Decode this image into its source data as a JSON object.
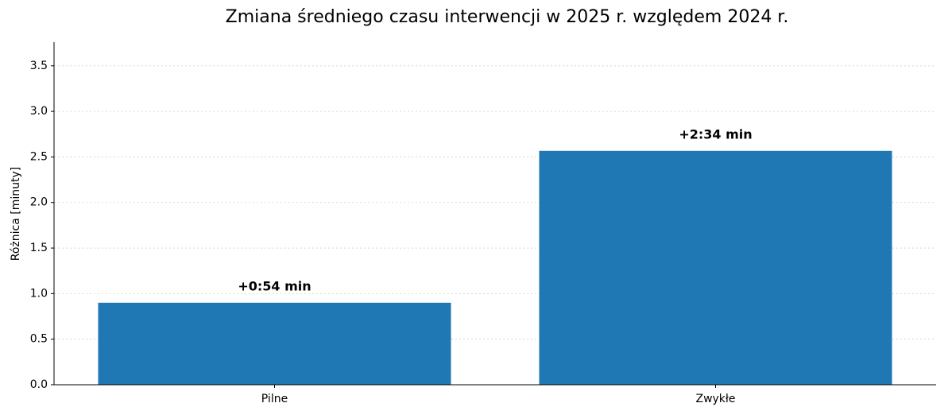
{
  "chart_data": {
    "type": "bar",
    "title": "Zmiana średniego czasu interwencji w 2025 r. względem 2024 r.",
    "y_label": "Różnica [minuty]",
    "categories": [
      "Pilne",
      "Zwykłe"
    ],
    "values": [
      0.9,
      2.5667
    ],
    "value_labels": [
      "+0:54 min",
      "+2:34 min"
    ],
    "color": "#1f77b4",
    "ylim": [
      0,
      3.76
    ],
    "yticks": [
      {
        "value": 0,
        "label": "0.0"
      },
      0.5,
      {
        "value": 1,
        "label": "1.0"
      },
      1.5,
      {
        "value": 2,
        "label": "2.0"
      },
      2.5,
      {
        "value": 3,
        "label": "3.0"
      },
      3.5
    ],
    "grid": true
  }
}
